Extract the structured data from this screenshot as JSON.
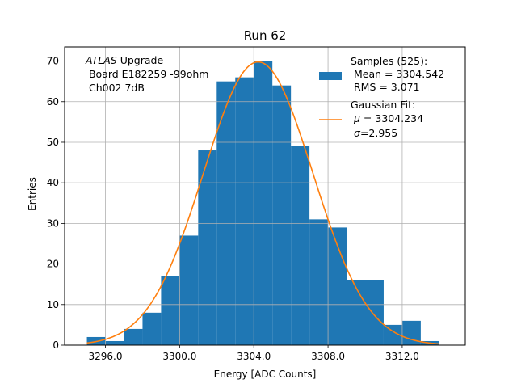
{
  "chart_data": {
    "type": "bar",
    "title": "Run 62",
    "xlabel": "Energy [ADC Counts]",
    "ylabel": "Entries",
    "xlim": [
      3293.8,
      3315.4
    ],
    "ylim": [
      0,
      73.5
    ],
    "xticks": [
      "3296.0",
      "3300.0",
      "3304.0",
      "3308.0",
      "3312.0"
    ],
    "xtick_values": [
      3296,
      3300,
      3304,
      3308,
      3312
    ],
    "yticks": [
      0,
      10,
      20,
      30,
      40,
      50,
      60,
      70
    ],
    "grid": true,
    "colors": {
      "histogram": "#1f77b4",
      "fit": "#ff7f0e"
    },
    "annotation": {
      "line1_italic": "ATLAS",
      "line1_rest": " Upgrade",
      "line2": " Board E182259 -99ohm",
      "line3": " Ch002 7dB"
    },
    "histogram": {
      "bin_edges": [
        3295.0,
        3296.0,
        3297.0,
        3298.0,
        3299.0,
        3300.0,
        3301.0,
        3302.0,
        3303.0,
        3304.0,
        3305.0,
        3306.0,
        3307.0,
        3308.0,
        3309.0,
        3310.0,
        3311.0,
        3312.0,
        3313.0,
        3314.0
      ],
      "counts": [
        2,
        1,
        4,
        8,
        17,
        27,
        48,
        65,
        66,
        70,
        64,
        49,
        31,
        29,
        16,
        16,
        5,
        6,
        1
      ]
    },
    "fit": {
      "n_samples": 525,
      "mu": 3304.234,
      "sigma": 2.955,
      "peak": 69.8,
      "x_range": [
        3295.0,
        3314.0
      ]
    },
    "legend": {
      "position": "top-right",
      "histogram_label": [
        "Samples (525):",
        " Mean = 3304.542",
        " RMS = 3.071"
      ],
      "fit_label_line1": "Gaussian Fit:",
      "fit_mu_symbol": "μ",
      "fit_mu_text": " = 3304.234",
      "fit_sigma_symbol": "σ",
      "fit_sigma_text": "=2.955"
    }
  }
}
